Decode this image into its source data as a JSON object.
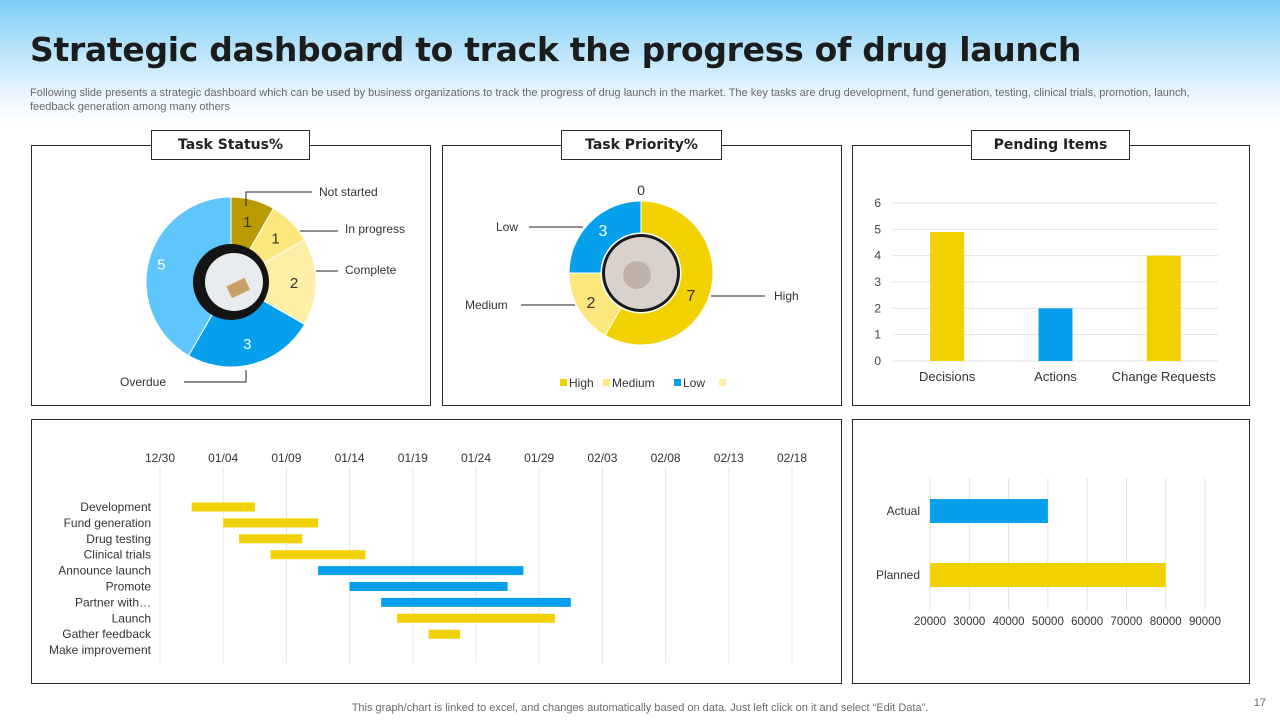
{
  "header": {
    "title": "Strategic dashboard to track the progress of drug launch",
    "subtitle": "Following slide presents a strategic dashboard which can be used by business organizations to track the progress of drug launch in the market. The key tasks are drug development, fund generation, testing, clinical trials, promotion, launch, feedback generation among many others"
  },
  "panels": {
    "task_status": "Task Status%",
    "task_priority": "Task Priority%",
    "pending_items": "Pending Items"
  },
  "colors": {
    "yellow": "#f2d100",
    "light_yellow": "#fbe77c",
    "pale_yellow": "#fdf0a6",
    "olive": "#b89b00",
    "blue": "#069fec",
    "light_blue": "#5ec6fa"
  },
  "chart_data": [
    {
      "id": "task-status",
      "type": "pie",
      "title": "Task Status%",
      "labels": [
        "Not started",
        "In progress",
        "Complete",
        "Overdue",
        ""
      ],
      "values": [
        1,
        1,
        2,
        3,
        5
      ],
      "colors": [
        "#b89b00",
        "#fbe77c",
        "#fdf0a6",
        "#069fec",
        "#5ec6fa"
      ]
    },
    {
      "id": "task-priority",
      "type": "pie",
      "title": "Task Priority%",
      "labels": [
        "High",
        "Medium",
        "Low",
        ""
      ],
      "values": [
        7,
        2,
        3,
        0
      ],
      "colors": [
        "#f2d100",
        "#fbe77c",
        "#069fec",
        "#fdf0a6"
      ],
      "legend": [
        "High",
        "Medium",
        "Low",
        ""
      ]
    },
    {
      "id": "pending-items",
      "type": "bar",
      "title": "Pending Items",
      "categories": [
        "Decisions",
        "Actions",
        "Change Requests"
      ],
      "values": [
        4.9,
        2,
        4
      ],
      "colors": [
        "#f2d100",
        "#069fec",
        "#f2d100"
      ],
      "ylim": [
        0,
        6
      ],
      "yticks": [
        0,
        1,
        2,
        3,
        4,
        5,
        6
      ],
      "grid": true
    },
    {
      "id": "gantt",
      "type": "bar",
      "orientation": "horizontal",
      "tick_labels": [
        "12/30",
        "01/04",
        "01/09",
        "01/14",
        "01/19",
        "01/24",
        "01/29",
        "02/03",
        "02/08",
        "02/13",
        "02/18"
      ],
      "tasks": [
        {
          "name": "Development",
          "start": 2.5,
          "duration": 5,
          "color": "#f2d100"
        },
        {
          "name": "Fund generation",
          "start": 5,
          "duration": 7.5,
          "color": "#f2d100"
        },
        {
          "name": "Drug testing",
          "start": 6.25,
          "duration": 5,
          "color": "#f2d100"
        },
        {
          "name": "Clinical trials",
          "start": 8.75,
          "duration": 7.5,
          "color": "#f2d100"
        },
        {
          "name": "Announce launch",
          "start": 12.5,
          "duration": 16.25,
          "color": "#069fec"
        },
        {
          "name": "Promote",
          "start": 15,
          "duration": 12.5,
          "color": "#069fec"
        },
        {
          "name": "Partner with…",
          "start": 17.5,
          "duration": 15,
          "color": "#069fec"
        },
        {
          "name": "Launch",
          "start": 18.75,
          "duration": 12.5,
          "color": "#f2d100"
        },
        {
          "name": "Gather feedback",
          "start": 21.25,
          "duration": 2.5,
          "color": "#f2d100"
        },
        {
          "name": "Make improvement",
          "start": 0,
          "duration": 0,
          "color": "#f2d100"
        }
      ],
      "xlim": [
        0,
        50
      ],
      "grid": true
    },
    {
      "id": "actual-vs-planned",
      "type": "bar",
      "orientation": "horizontal",
      "categories": [
        "Actual",
        "Planned"
      ],
      "values": [
        50000,
        80000
      ],
      "colors": [
        "#069fec",
        "#f2d100"
      ],
      "xlim": [
        20000,
        90000
      ],
      "xticks": [
        20000,
        30000,
        40000,
        50000,
        60000,
        70000,
        80000,
        90000
      ],
      "grid": true
    }
  ],
  "footer": {
    "note": "This graph/chart is linked to excel,  and changes automatically based on data. Just left click on it and select “Edit Data”.",
    "page_number": "17"
  }
}
